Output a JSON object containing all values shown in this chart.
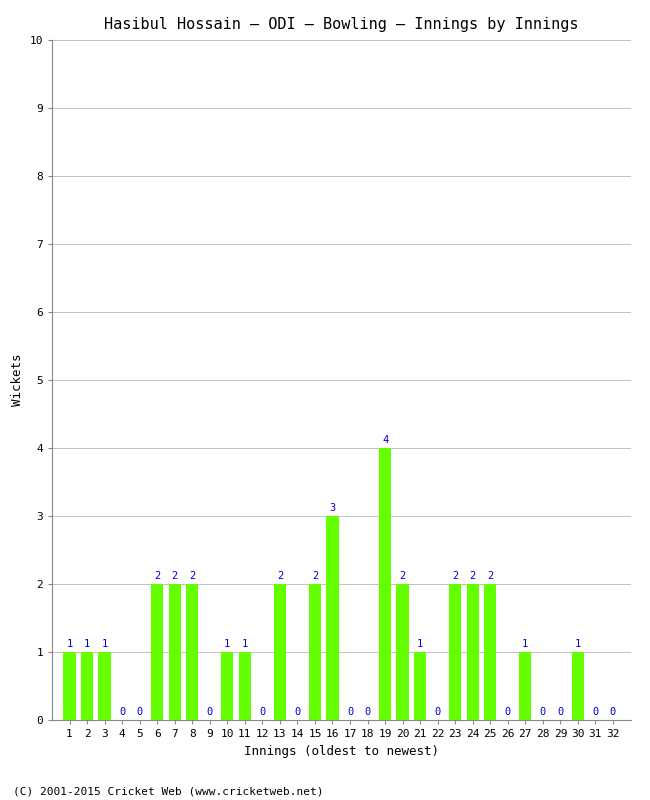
{
  "title": "Hasibul Hossain – ODI – Bowling – Innings by Innings",
  "xlabel": "Innings (oldest to newest)",
  "ylabel": "Wickets",
  "footer": "(C) 2001-2015 Cricket Web (www.cricketweb.net)",
  "innings": [
    1,
    2,
    3,
    4,
    5,
    6,
    7,
    8,
    9,
    10,
    11,
    12,
    13,
    14,
    15,
    16,
    17,
    18,
    19,
    20,
    21,
    22,
    23,
    24,
    25,
    26,
    27,
    28,
    29,
    30,
    31,
    32
  ],
  "wickets": [
    1,
    1,
    1,
    0,
    0,
    2,
    2,
    2,
    0,
    1,
    1,
    0,
    2,
    0,
    2,
    3,
    0,
    0,
    4,
    2,
    1,
    0,
    2,
    2,
    2,
    0,
    1,
    0,
    0,
    1,
    0,
    0
  ],
  "bar_color": "#66ff00",
  "label_color": "#0000cc",
  "background_color": "#ffffff",
  "ylim": [
    0,
    10
  ],
  "yticks": [
    0,
    1,
    2,
    3,
    4,
    5,
    6,
    7,
    8,
    9,
    10
  ],
  "grid_color": "#aaaaaa",
  "title_fontsize": 11,
  "label_fontsize": 9,
  "tick_fontsize": 8,
  "annotation_fontsize": 7.5,
  "footer_fontsize": 8
}
